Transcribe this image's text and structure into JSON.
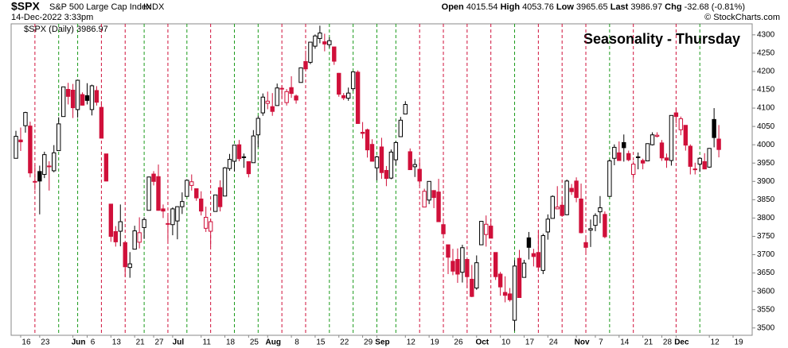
{
  "chart_data": {
    "type": "candlestick",
    "symbol": "$SPX",
    "name": "S&P 500 Large Cap Index",
    "exchange": "INDX",
    "datetime": "14-Dec-2022 3:33pm",
    "quote": {
      "Open": "4015.54",
      "High": "4053.76",
      "Low": "3965.65",
      "Last": "3986.97",
      "Chg": "-32.68 (-0.81%)"
    },
    "legend": "$SPX (Daily) 3986.97",
    "copyright": "© StockCharts.com",
    "title": "Seasonality - Thursday",
    "ylim": [
      3480,
      4330
    ],
    "yticks": [
      3500,
      3550,
      3600,
      3650,
      3700,
      3750,
      3800,
      3850,
      3900,
      3950,
      4000,
      4050,
      4100,
      4150,
      4200,
      4250,
      4300
    ],
    "categories": [
      null,
      "16",
      null,
      null,
      null,
      "23",
      null,
      null,
      null,
      null,
      null,
      null,
      "Jun",
      null,
      null,
      "6",
      null,
      null,
      null,
      null,
      "13",
      null,
      null,
      null,
      null,
      "21",
      null,
      null,
      null,
      "27",
      null,
      null,
      null,
      "Jul",
      null,
      null,
      null,
      null,
      null,
      "11",
      null,
      null,
      null,
      null,
      "18",
      null,
      null,
      null,
      null,
      "25",
      null,
      null,
      null,
      "Aug",
      null,
      null,
      null,
      null,
      "8",
      null,
      null,
      null,
      null,
      "15",
      null,
      null,
      null,
      null,
      "22",
      null,
      null,
      null,
      null,
      "29",
      null,
      null,
      "Sep",
      null,
      null,
      null,
      null,
      null,
      "12",
      null,
      null,
      null,
      null,
      "19",
      null,
      null,
      null,
      null,
      "26",
      null,
      null,
      null,
      null,
      "Oct",
      null,
      null,
      null,
      null,
      "10",
      null,
      null,
      null,
      null,
      "17",
      null,
      null,
      null,
      null,
      "24",
      null,
      null,
      null,
      null,
      null,
      "Nov",
      null,
      null,
      null,
      "7",
      null,
      null,
      null,
      null,
      "14",
      null,
      null,
      null,
      null,
      "21",
      null,
      null,
      null,
      "28",
      null,
      null,
      "Dec",
      null,
      null,
      null,
      null,
      null,
      null,
      "12",
      null,
      null
    ],
    "axis_extension": [
      null,
      null,
      "19"
    ],
    "marker_indices": [
      4,
      9,
      13,
      18,
      23,
      27,
      32,
      36,
      41,
      46,
      51,
      56,
      61,
      66,
      71,
      76,
      80,
      85,
      90,
      95,
      100,
      105,
      110,
      115,
      120,
      125,
      130,
      139,
      144
    ],
    "colors": {
      "up": "#000000",
      "down": "#d0103a",
      "title": "#1a1ad0",
      "line_up": "#1a9a1a",
      "line_down": "#d0103a"
    },
    "candles": [
      [
        3963,
        4038,
        3963,
        4023
      ],
      [
        4013,
        4047,
        3983,
        4008
      ],
      [
        4052,
        4090,
        4033,
        4088
      ],
      [
        4051,
        4063,
        3911,
        3923
      ],
      [
        3900,
        3945,
        3876,
        3900
      ],
      [
        3927,
        3943,
        3810,
        3901
      ],
      [
        3919,
        3981,
        3909,
        3973
      ],
      [
        3942,
        3955,
        3875,
        3941
      ],
      [
        3929,
        3999,
        3925,
        3978
      ],
      [
        3984,
        4075,
        3984,
        4057
      ],
      [
        4077,
        4158,
        4077,
        4158
      ],
      [
        4151,
        4169,
        4110,
        4132
      ],
      [
        4149,
        4166,
        4073,
        4101
      ],
      [
        4096,
        4177,
        4074,
        4176
      ],
      [
        4137,
        4143,
        4107,
        4108
      ],
      [
        4134,
        4168,
        4110,
        4121
      ],
      [
        4096,
        4164,
        4080,
        4161
      ],
      [
        4148,
        4160,
        4107,
        4116
      ],
      [
        4102,
        4119,
        4018,
        4018
      ],
      [
        3975,
        3975,
        3900,
        3901
      ],
      [
        3838,
        3838,
        3735,
        3750
      ],
      [
        3763,
        3778,
        3722,
        3735
      ],
      [
        3764,
        3837,
        3723,
        3790
      ],
      [
        3733,
        3733,
        3640,
        3667
      ],
      [
        3665,
        3707,
        3637,
        3675
      ],
      [
        3715,
        3779,
        3715,
        3765
      ],
      [
        3734,
        3802,
        3717,
        3760
      ],
      [
        3774,
        3802,
        3743,
        3796
      ],
      [
        3821,
        3913,
        3821,
        3912
      ],
      [
        3920,
        3928,
        3889,
        3900
      ],
      [
        3913,
        3946,
        3820,
        3821
      ],
      [
        3825,
        3837,
        3800,
        3819
      ],
      [
        3785,
        3807,
        3738,
        3785
      ],
      [
        3782,
        3829,
        3753,
        3825
      ],
      [
        3792,
        3832,
        3742,
        3831
      ],
      [
        3831,
        3870,
        3811,
        3845
      ],
      [
        3859,
        3906,
        3859,
        3903
      ],
      [
        3889,
        3919,
        3875,
        3899
      ],
      [
        3880,
        3880,
        3847,
        3855
      ],
      [
        3852,
        3873,
        3807,
        3819
      ],
      [
        3772,
        3831,
        3762,
        3802
      ],
      [
        3764,
        3797,
        3722,
        3790
      ],
      [
        3818,
        3863,
        3818,
        3863
      ],
      [
        3883,
        3903,
        3818,
        3831
      ],
      [
        3860,
        3939,
        3860,
        3937
      ],
      [
        3935,
        3975,
        3929,
        3960
      ],
      [
        3955,
        3999,
        3927,
        3999
      ],
      [
        4000,
        4013,
        3955,
        3962
      ],
      [
        3966,
        3976,
        3937,
        3967
      ],
      [
        3954,
        3954,
        3911,
        3921
      ],
      [
        3951,
        4040,
        3951,
        4024
      ],
      [
        4027,
        4079,
        3993,
        4072
      ],
      [
        4087,
        4140,
        4079,
        4130
      ],
      [
        4113,
        4145,
        4097,
        4119
      ],
      [
        4104,
        4141,
        4079,
        4091
      ],
      [
        4107,
        4167,
        4107,
        4155
      ],
      [
        4154,
        4162,
        4128,
        4152
      ],
      [
        4115,
        4152,
        4107,
        4145
      ],
      [
        4156,
        4187,
        4128,
        4140
      ],
      [
        4133,
        4137,
        4112,
        4122
      ],
      [
        4170,
        4211,
        4170,
        4210
      ],
      [
        4227,
        4257,
        4201,
        4207
      ],
      [
        4225,
        4280,
        4220,
        4280
      ],
      [
        4269,
        4301,
        4262,
        4297
      ],
      [
        4290,
        4325,
        4277,
        4305
      ],
      [
        4281,
        4303,
        4255,
        4275
      ],
      [
        4273,
        4293,
        4265,
        4284
      ],
      [
        4267,
        4267,
        4218,
        4228
      ],
      [
        4195,
        4196,
        4131,
        4138
      ],
      [
        4134,
        4141,
        4122,
        4128
      ],
      [
        4127,
        4156,
        4120,
        4141
      ],
      [
        4153,
        4200,
        4147,
        4199
      ],
      [
        4198,
        4203,
        4057,
        4058
      ],
      [
        4034,
        4062,
        4017,
        4031
      ],
      [
        4041,
        4044,
        3965,
        3986
      ],
      [
        4001,
        4015,
        3954,
        3955
      ],
      [
        3937,
        3970,
        3903,
        3967
      ],
      [
        3994,
        4019,
        3907,
        3924
      ],
      [
        3930,
        3942,
        3887,
        3908
      ],
      [
        3909,
        3987,
        3906,
        3980
      ],
      [
        3959,
        4010,
        3944,
        4006
      ],
      [
        4022,
        4076,
        4022,
        4067
      ],
      [
        4084,
        4119,
        4084,
        4110
      ],
      [
        3981,
        3990,
        3932,
        3932
      ],
      [
        3940,
        3961,
        3912,
        3946
      ],
      [
        3933,
        3959,
        3888,
        3901
      ],
      [
        3830,
        3880,
        3830,
        3873
      ],
      [
        3849,
        3900,
        3838,
        3900
      ],
      [
        3875,
        3876,
        3827,
        3856
      ],
      [
        3871,
        3907,
        3789,
        3790
      ],
      [
        3782,
        3790,
        3749,
        3757
      ],
      [
        3727,
        3727,
        3647,
        3693
      ],
      [
        3682,
        3716,
        3644,
        3655
      ],
      [
        3687,
        3717,
        3623,
        3647
      ],
      [
        3652,
        3727,
        3624,
        3719
      ],
      [
        3687,
        3687,
        3610,
        3640
      ],
      [
        3633,
        3672,
        3584,
        3586
      ],
      [
        3609,
        3698,
        3604,
        3678
      ],
      [
        3727,
        3792,
        3727,
        3791
      ],
      [
        3755,
        3807,
        3722,
        3783
      ],
      [
        3778,
        3798,
        3745,
        3745
      ],
      [
        3706,
        3706,
        3631,
        3640
      ],
      [
        3647,
        3653,
        3588,
        3612
      ],
      [
        3597,
        3641,
        3570,
        3589
      ],
      [
        3593,
        3609,
        3572,
        3577
      ],
      [
        3521,
        3685,
        3492,
        3669
      ],
      [
        3690,
        3713,
        3582,
        3583
      ],
      [
        3638,
        3686,
        3638,
        3677
      ],
      [
        3746,
        3762,
        3687,
        3720
      ],
      [
        3703,
        3716,
        3668,
        3695
      ],
      [
        3706,
        3765,
        3657,
        3666
      ],
      [
        3657,
        3757,
        3647,
        3752
      ],
      [
        3762,
        3810,
        3741,
        3797
      ],
      [
        3799,
        3862,
        3799,
        3859
      ],
      [
        3825,
        3887,
        3825,
        3830
      ],
      [
        3835,
        3859,
        3803,
        3807
      ],
      [
        3809,
        3905,
        3808,
        3901
      ],
      [
        3881,
        3893,
        3863,
        3872
      ],
      [
        3901,
        3911,
        3843,
        3856
      ],
      [
        3852,
        3894,
        3758,
        3760
      ],
      [
        3733,
        3750,
        3699,
        3720
      ],
      [
        3767,
        3796,
        3721,
        3771
      ],
      [
        3780,
        3813,
        3764,
        3807
      ],
      [
        3817,
        3860,
        3786,
        3828
      ],
      [
        3810,
        3818,
        3745,
        3749
      ],
      [
        3859,
        3960,
        3859,
        3956
      ],
      [
        3963,
        4001,
        3944,
        3993
      ],
      [
        3978,
        4009,
        3956,
        3957
      ],
      [
        4006,
        4028,
        3954,
        3992
      ],
      [
        3976,
        3984,
        3955,
        3959
      ],
      [
        3919,
        3955,
        3906,
        3947
      ],
      [
        3967,
        3979,
        3933,
        3965
      ],
      [
        3957,
        3962,
        3933,
        3950
      ],
      [
        3956,
        4004,
        3956,
        4003
      ],
      [
        4000,
        4034,
        3998,
        4027
      ],
      [
        4023,
        4034,
        4020,
        4026
      ],
      [
        4005,
        4013,
        3956,
        3964
      ],
      [
        3964,
        3976,
        3937,
        3958
      ],
      [
        3957,
        4080,
        3943,
        4080
      ],
      [
        4087,
        4101,
        4058,
        4077
      ],
      [
        4041,
        4077,
        4026,
        4071
      ],
      [
        4053,
        4053,
        3984,
        3999
      ],
      [
        3996,
        4001,
        3919,
        3941
      ],
      [
        3934,
        3951,
        3919,
        3933
      ],
      [
        3947,
        3966,
        3926,
        3963
      ],
      [
        3954,
        3977,
        3933,
        3934
      ],
      [
        3939,
        3991,
        3937,
        3990
      ],
      [
        4069,
        4100,
        3993,
        4019.65
      ],
      [
        4015.54,
        4053.76,
        3965.65,
        3986.97
      ]
    ]
  }
}
